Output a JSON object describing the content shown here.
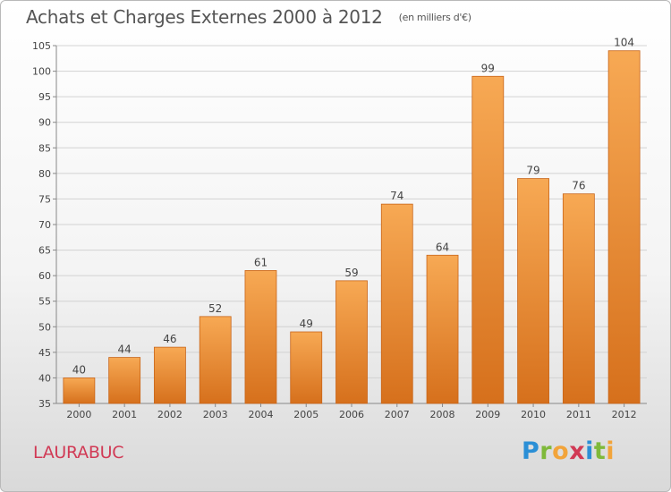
{
  "header": {
    "title": "Achats et Charges Externes 2000 à 2012",
    "unit": "(en milliers d'€)"
  },
  "commune": "LAURABUC",
  "brand": {
    "name": "Proxiti",
    "letters": [
      {
        "ch": "P",
        "color": "#2b8fd6"
      },
      {
        "ch": "r",
        "color": "#7fb93a"
      },
      {
        "ch": "o",
        "color": "#f2a43a"
      },
      {
        "ch": "x",
        "color": "#d13a55"
      },
      {
        "ch": "i",
        "color": "#2b8fd6"
      },
      {
        "ch": "t",
        "color": "#7fb93a"
      },
      {
        "ch": "i",
        "color": "#f2a43a"
      }
    ]
  },
  "colors": {
    "bar_top": "#f7a954",
    "bar_bottom": "#d6701c",
    "bar_stroke": "#c8651a",
    "grid": "#d2d2d2",
    "axis": "#888888",
    "text": "#444444"
  },
  "chart_data": {
    "type": "bar",
    "categories": [
      "2000",
      "2001",
      "2002",
      "2003",
      "2004",
      "2005",
      "2006",
      "2007",
      "2008",
      "2009",
      "2010",
      "2011",
      "2012"
    ],
    "values": [
      40,
      44,
      46,
      52,
      61,
      49,
      59,
      74,
      64,
      99,
      79,
      76,
      104
    ],
    "ylim": [
      35,
      105
    ],
    "yticks": [
      35,
      40,
      45,
      50,
      55,
      60,
      65,
      70,
      75,
      80,
      85,
      90,
      95,
      100,
      105
    ],
    "grid": true,
    "data_labels": true
  }
}
